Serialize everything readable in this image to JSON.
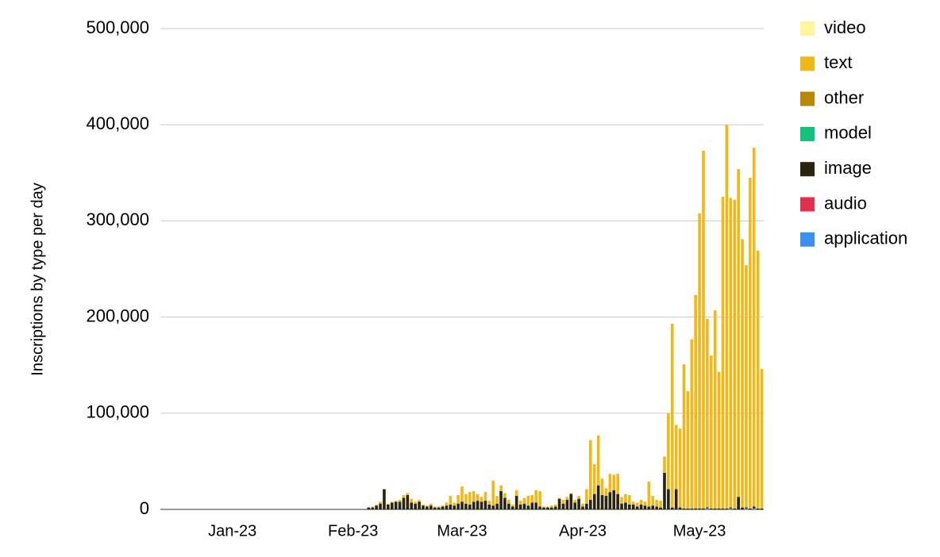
{
  "chart_data": {
    "type": "stacked-bar",
    "y_label": "Inscriptions by type per day",
    "ylim": [
      0,
      500000
    ],
    "yticks": [
      0,
      {
        "value": 100000,
        "label": "100,000"
      },
      {
        "value": 200000,
        "label": "200,000"
      },
      {
        "value": 300000,
        "label": "300,000"
      },
      {
        "value": 400000,
        "label": "400,000"
      },
      {
        "value": 500000,
        "label": "500,000"
      }
    ],
    "grid": true,
    "legend": "right",
    "categories": [
      null,
      null,
      null,
      null,
      null,
      null,
      null,
      null,
      null,
      null,
      null,
      null,
      null,
      null,
      null,
      null,
      null,
      null,
      "Jan-23",
      null,
      null,
      null,
      null,
      null,
      null,
      null,
      null,
      null,
      null,
      null,
      null,
      null,
      null,
      null,
      null,
      null,
      null,
      null,
      null,
      null,
      null,
      null,
      null,
      null,
      null,
      null,
      null,
      null,
      null,
      "Feb-23",
      null,
      null,
      null,
      null,
      null,
      null,
      null,
      null,
      null,
      null,
      null,
      null,
      null,
      null,
      null,
      null,
      null,
      null,
      null,
      null,
      null,
      null,
      null,
      null,
      null,
      null,
      null,
      "Mar-23",
      null,
      null,
      null,
      null,
      null,
      null,
      null,
      null,
      null,
      null,
      null,
      null,
      null,
      null,
      null,
      null,
      null,
      null,
      null,
      null,
      null,
      null,
      null,
      null,
      null,
      null,
      null,
      null,
      null,
      null,
      "Apr-23",
      null,
      null,
      null,
      null,
      null,
      null,
      null,
      null,
      null,
      null,
      null,
      null,
      null,
      null,
      null,
      null,
      null,
      null,
      null,
      null,
      null,
      null,
      null,
      null,
      null,
      null,
      null,
      null,
      null,
      "May-23",
      null,
      null,
      null,
      null,
      null,
      null,
      null,
      null,
      null,
      null,
      null,
      null,
      null,
      null,
      null,
      null
    ],
    "series": [
      {
        "name": "video",
        "color": "#fff59d",
        "values": [
          0,
          0,
          0,
          0,
          0,
          0,
          0,
          0,
          0,
          0,
          0,
          0,
          0,
          0,
          0,
          0,
          0,
          0,
          0,
          0,
          0,
          0,
          0,
          0,
          0,
          0,
          0,
          0,
          0,
          0,
          0,
          0,
          0,
          0,
          0,
          0,
          0,
          0,
          0,
          0,
          0,
          0,
          0,
          0,
          0,
          0,
          0,
          0,
          0,
          0,
          0,
          0,
          0,
          0,
          0,
          0,
          0,
          0,
          0,
          0,
          0,
          0,
          0,
          0,
          0,
          0,
          0,
          0,
          0,
          0,
          0,
          0,
          0,
          0,
          0,
          0,
          0,
          0,
          0,
          0,
          0,
          0,
          0,
          0,
          0,
          0,
          0,
          0,
          0,
          0,
          0,
          0,
          0,
          0,
          0,
          0,
          0,
          0,
          0,
          0,
          0,
          0,
          0,
          0,
          0,
          0,
          0,
          0,
          0,
          0,
          0,
          0,
          0,
          0,
          0,
          0,
          0,
          0,
          0,
          0,
          0,
          0,
          0,
          0,
          0,
          0,
          0,
          0,
          0,
          0,
          0,
          0,
          0,
          0,
          0,
          0,
          0,
          0,
          0,
          0,
          0,
          0,
          0,
          0,
          0,
          0,
          0,
          0,
          0,
          0,
          0,
          0,
          0,
          0,
          0
        ]
      },
      {
        "name": "text",
        "color": "#f1b81a",
        "values": [
          0,
          0,
          0,
          0,
          0,
          0,
          0,
          0,
          0,
          0,
          0,
          0,
          0,
          0,
          0,
          0,
          0,
          0,
          0,
          0,
          0,
          0,
          0,
          0,
          0,
          0,
          0,
          0,
          0,
          0,
          0,
          0,
          0,
          0,
          0,
          0,
          0,
          0,
          0,
          0,
          0,
          0,
          0,
          0,
          0,
          0,
          0,
          0,
          0,
          0,
          0,
          0,
          0,
          0,
          1000,
          1000,
          2000,
          0,
          1000,
          1000,
          1000,
          2000,
          3000,
          2000,
          4000,
          2000,
          2000,
          1000,
          1000,
          2000,
          1000,
          1000,
          1000,
          3000,
          9000,
          3000,
          9000,
          16000,
          10000,
          13000,
          11000,
          7000,
          5000,
          9000,
          4000,
          26000,
          8000,
          6000,
          5000,
          4000,
          2000,
          6000,
          4000,
          6000,
          10000,
          8000,
          13000,
          16000,
          1000,
          1000,
          2000,
          2000,
          1000,
          4000,
          3000,
          1000,
          3000,
          3000,
          3000,
          15000,
          62000,
          31000,
          52000,
          17000,
          8000,
          19000,
          16000,
          21000,
          7000,
          9000,
          10000,
          3000,
          4000,
          5000,
          4000,
          26000,
          10000,
          7000,
          7000,
          17000,
          79000,
          191000,
          67000,
          82000,
          150000,
          122000,
          176000,
          222000,
          307000,
          372000,
          196000,
          159000,
          206000,
          142000,
          324000,
          399000,
          322000,
          321000,
          341000,
          279000,
          252000,
          344000,
          373000,
          268000,
          145000
        ]
      },
      {
        "name": "other",
        "color": "#b8860b",
        "values": [
          0,
          0,
          0,
          0,
          0,
          0,
          0,
          0,
          0,
          0,
          0,
          0,
          0,
          0,
          0,
          0,
          0,
          0,
          0,
          0,
          0,
          0,
          0,
          0,
          0,
          0,
          0,
          0,
          0,
          0,
          0,
          0,
          0,
          0,
          0,
          0,
          0,
          0,
          0,
          0,
          0,
          0,
          0,
          0,
          0,
          0,
          0,
          0,
          0,
          0,
          0,
          0,
          0,
          0,
          0,
          0,
          0,
          0,
          0,
          0,
          0,
          0,
          0,
          0,
          0,
          0,
          0,
          0,
          0,
          0,
          0,
          0,
          0,
          0,
          0,
          0,
          0,
          0,
          0,
          0,
          0,
          0,
          0,
          0,
          0,
          0,
          0,
          0,
          0,
          0,
          0,
          0,
          0,
          0,
          0,
          0,
          0,
          0,
          0,
          0,
          0,
          0,
          0,
          0,
          0,
          0,
          0,
          0,
          0,
          0,
          0,
          0,
          0,
          0,
          0,
          0,
          0,
          0,
          0,
          0,
          0,
          0,
          0,
          0,
          0,
          0,
          0,
          0,
          0,
          0,
          0,
          0,
          0,
          0,
          0,
          0,
          0,
          0,
          0,
          0,
          0,
          0,
          0,
          0,
          0,
          0,
          0,
          0,
          0,
          0,
          0,
          0,
          0,
          0,
          0
        ]
      },
      {
        "name": "model",
        "color": "#14c07a",
        "values": [
          0,
          0,
          0,
          0,
          0,
          0,
          0,
          0,
          0,
          0,
          0,
          0,
          0,
          0,
          0,
          0,
          0,
          0,
          0,
          0,
          0,
          0,
          0,
          0,
          0,
          0,
          0,
          0,
          0,
          0,
          0,
          0,
          0,
          0,
          0,
          0,
          0,
          0,
          0,
          0,
          0,
          0,
          0,
          0,
          0,
          0,
          0,
          0,
          0,
          0,
          0,
          0,
          0,
          0,
          0,
          0,
          0,
          0,
          0,
          0,
          0,
          0,
          0,
          0,
          0,
          0,
          0,
          0,
          0,
          0,
          0,
          0,
          0,
          0,
          0,
          0,
          0,
          0,
          0,
          0,
          0,
          0,
          0,
          0,
          0,
          0,
          0,
          0,
          0,
          0,
          0,
          0,
          0,
          0,
          0,
          0,
          0,
          0,
          0,
          0,
          0,
          0,
          0,
          0,
          0,
          0,
          0,
          0,
          0,
          0,
          0,
          0,
          0,
          0,
          0,
          0,
          0,
          0,
          0,
          0,
          0,
          0,
          0,
          0,
          0,
          0,
          0,
          0,
          0,
          0,
          0,
          0,
          0,
          0,
          0,
          0,
          0,
          0,
          0,
          0,
          0,
          0,
          0,
          0,
          0,
          0,
          0,
          0,
          0,
          0,
          0,
          0,
          0,
          0,
          0
        ]
      },
      {
        "name": "image",
        "color": "#2a2310",
        "values": [
          0,
          0,
          0,
          0,
          0,
          0,
          0,
          0,
          0,
          0,
          0,
          0,
          0,
          0,
          0,
          0,
          0,
          0,
          0,
          0,
          0,
          0,
          0,
          0,
          0,
          0,
          0,
          0,
          0,
          0,
          0,
          0,
          0,
          0,
          0,
          0,
          0,
          0,
          0,
          0,
          0,
          0,
          0,
          0,
          0,
          0,
          0,
          0,
          0,
          0,
          0,
          0,
          0,
          2000,
          2000,
          4000,
          6000,
          21000,
          5000,
          7000,
          8000,
          8000,
          12000,
          15000,
          7000,
          6000,
          8000,
          4000,
          3000,
          4000,
          2000,
          2000,
          3000,
          4000,
          5000,
          4000,
          6000,
          8000,
          6000,
          5000,
          8000,
          9000,
          8000,
          9000,
          5000,
          4000,
          6000,
          19000,
          12000,
          6000,
          3000,
          14000,
          5000,
          6000,
          4000,
          7000,
          7000,
          3000,
          2000,
          2000,
          2000,
          3000,
          11000,
          6000,
          10000,
          16000,
          7000,
          11000,
          3000,
          6000,
          10000,
          16000,
          25000,
          15000,
          14000,
          18000,
          20000,
          16000,
          6000,
          7000,
          5000,
          5000,
          3000,
          5000,
          4000,
          3000,
          4000,
          3000,
          2000,
          38000,
          21000,
          2000,
          21000,
          2000,
          1000,
          1000,
          1000,
          1000,
          1000,
          1000,
          1000,
          1000,
          1000,
          1000,
          1000,
          1000,
          1000,
          1000,
          13000,
          2000,
          1000,
          1000,
          2000,
          1000,
          1000
        ]
      },
      {
        "name": "audio",
        "color": "#e0304e",
        "values": [
          0,
          0,
          0,
          0,
          0,
          0,
          0,
          0,
          0,
          0,
          0,
          0,
          0,
          0,
          0,
          0,
          0,
          0,
          0,
          0,
          0,
          0,
          0,
          0,
          0,
          0,
          0,
          0,
          0,
          0,
          0,
          0,
          0,
          0,
          0,
          0,
          0,
          0,
          0,
          0,
          0,
          0,
          0,
          0,
          0,
          0,
          0,
          0,
          0,
          0,
          0,
          0,
          0,
          0,
          0,
          0,
          0,
          0,
          0,
          0,
          0,
          0,
          0,
          0,
          0,
          0,
          0,
          0,
          0,
          0,
          0,
          0,
          0,
          0,
          0,
          0,
          0,
          0,
          0,
          0,
          0,
          0,
          0,
          0,
          0,
          0,
          0,
          0,
          0,
          0,
          0,
          0,
          0,
          0,
          0,
          0,
          0,
          0,
          0,
          0,
          0,
          0,
          0,
          0,
          0,
          0,
          0,
          0,
          0,
          0,
          0,
          0,
          0,
          0,
          0,
          0,
          0,
          0,
          0,
          0,
          0,
          0,
          0,
          0,
          0,
          0,
          0,
          0,
          0,
          0,
          0,
          0,
          0,
          0,
          0,
          0,
          0,
          0,
          0,
          0,
          0,
          0,
          0,
          0,
          0,
          0,
          0,
          0,
          0,
          0,
          0,
          0,
          0,
          0,
          0
        ]
      },
      {
        "name": "application",
        "color": "#3b8ff2",
        "values": [
          0,
          0,
          0,
          0,
          0,
          0,
          0,
          0,
          0,
          0,
          0,
          0,
          0,
          0,
          0,
          0,
          0,
          0,
          0,
          0,
          0,
          0,
          0,
          0,
          0,
          0,
          0,
          0,
          0,
          0,
          0,
          0,
          0,
          0,
          0,
          0,
          0,
          0,
          0,
          0,
          0,
          0,
          0,
          0,
          0,
          0,
          0,
          0,
          0,
          0,
          0,
          0,
          0,
          0,
          0,
          0,
          0,
          0,
          0,
          0,
          0,
          0,
          0,
          0,
          0,
          0,
          0,
          0,
          0,
          0,
          0,
          0,
          0,
          0,
          0,
          0,
          0,
          0,
          0,
          0,
          0,
          0,
          0,
          0,
          0,
          0,
          0,
          0,
          0,
          0,
          0,
          0,
          0,
          0,
          0,
          0,
          0,
          0,
          0,
          0,
          0,
          0,
          0,
          0,
          0,
          0,
          0,
          0,
          0,
          0,
          0,
          0,
          0,
          0,
          0,
          0,
          0,
          0,
          0,
          0,
          0,
          0,
          0,
          0,
          0,
          0,
          0,
          0,
          0,
          0,
          0,
          0,
          0,
          0,
          0,
          0,
          0,
          0,
          0,
          0,
          1000,
          0,
          0,
          0,
          0,
          0,
          1000,
          0,
          0,
          0,
          1000,
          0,
          1000,
          0,
          0
        ]
      }
    ]
  }
}
